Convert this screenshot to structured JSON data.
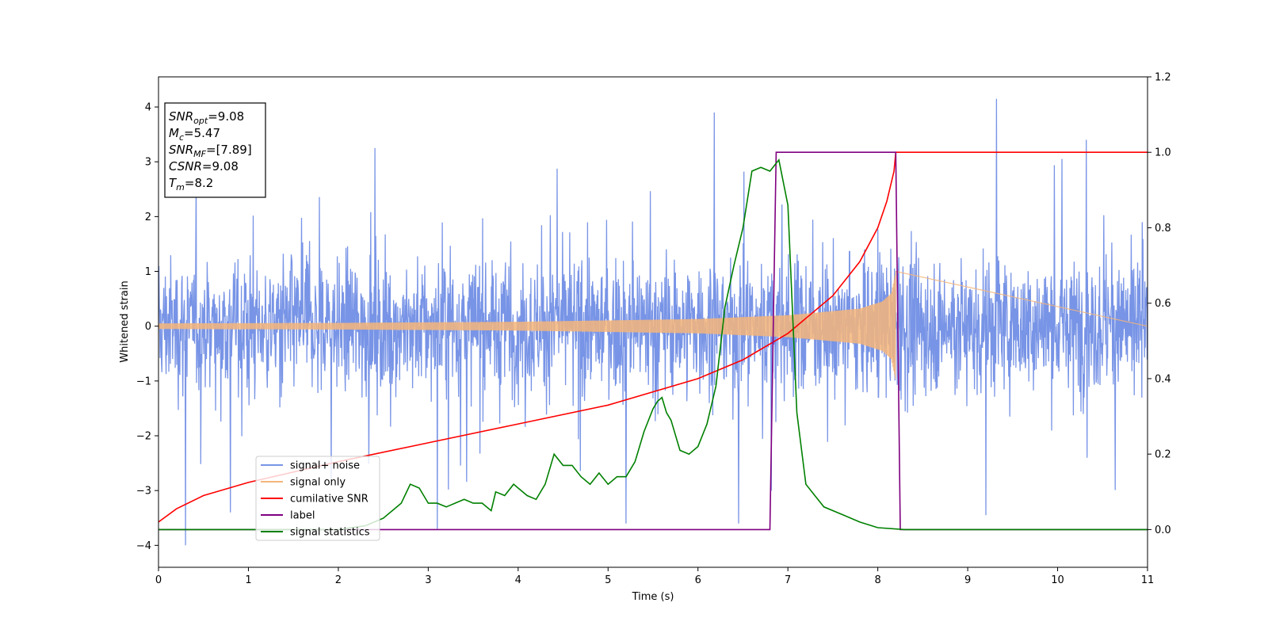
{
  "chart_data": {
    "type": "line",
    "xlabel": "Time (s)",
    "ylabel": "Whitened strain",
    "xlim": [
      0,
      11
    ],
    "ylim_left": [
      -4.4,
      4.55
    ],
    "ylim_right": [
      -0.1,
      1.2
    ],
    "x_ticks": [
      0,
      1,
      2,
      3,
      4,
      5,
      6,
      7,
      8,
      9,
      10,
      11
    ],
    "y_ticks_left": [
      -4,
      -3,
      -2,
      -1,
      0,
      1,
      2,
      3,
      4
    ],
    "y_ticks_right": [
      0.0,
      0.2,
      0.4,
      0.6,
      0.8,
      1.0,
      1.2
    ],
    "grid": false,
    "legend_position": "lower-left",
    "stats_box": [
      {
        "name": "SNR",
        "sub": "opt",
        "value": "=9.08"
      },
      {
        "name": "M",
        "sub": "c",
        "value": "=5.47"
      },
      {
        "name": "SNR",
        "sub": "MF",
        "value": "=[7.89]"
      },
      {
        "name": "CSNR",
        "sub": "",
        "value": "=9.08"
      },
      {
        "name": "T",
        "sub": "m",
        "value": "=8.2"
      }
    ],
    "series": [
      {
        "name": "signal+ noise",
        "axis": "left",
        "color": "#7894e6",
        "kind": "noise",
        "x_range": [
          0,
          11
        ],
        "band": [
          -2.6,
          3.2
        ],
        "spikes": [
          {
            "x": 0.3,
            "y": -4.0
          },
          {
            "x": 0.8,
            "y": -3.4
          },
          {
            "x": 3.1,
            "y": -3.7
          },
          {
            "x": 5.2,
            "y": -3.6
          },
          {
            "x": 6.18,
            "y": 3.9
          },
          {
            "x": 6.45,
            "y": -3.6
          },
          {
            "x": 9.2,
            "y": -3.45
          },
          {
            "x": 9.32,
            "y": 4.15
          },
          {
            "x": 10.32,
            "y": 3.4
          }
        ]
      },
      {
        "name": "signal only",
        "axis": "left",
        "color": "#f5b57a",
        "kind": "chirp",
        "x_range": [
          0,
          8.2
        ],
        "envelope": [
          [
            0,
            0.05
          ],
          [
            2,
            0.06
          ],
          [
            4,
            0.08
          ],
          [
            6,
            0.13
          ],
          [
            7,
            0.2
          ],
          [
            7.8,
            0.32
          ],
          [
            8.05,
            0.45
          ],
          [
            8.15,
            0.6
          ],
          [
            8.2,
            1.0
          ]
        ]
      },
      {
        "name": "cumilative SNR",
        "axis": "right",
        "color": "#ff0000",
        "x": [
          0,
          0.2,
          0.5,
          1,
          2,
          3,
          4,
          5,
          6,
          6.5,
          7,
          7.5,
          7.8,
          8.0,
          8.1,
          8.18,
          8.2,
          11
        ],
        "y": [
          0.02,
          0.055,
          0.09,
          0.125,
          0.18,
          0.23,
          0.28,
          0.33,
          0.4,
          0.45,
          0.52,
          0.62,
          0.71,
          0.8,
          0.87,
          0.95,
          1.0,
          1.0
        ]
      },
      {
        "name": "label",
        "axis": "right",
        "color": "#800080",
        "x": [
          0,
          6.8,
          6.87,
          8.2,
          8.25,
          11
        ],
        "y": [
          0,
          0,
          1,
          1,
          0,
          0
        ]
      },
      {
        "name": "signal statistics",
        "axis": "right",
        "color": "#008000",
        "x": [
          0,
          2.0,
          2.3,
          2.5,
          2.7,
          2.8,
          2.9,
          3.0,
          3.1,
          3.2,
          3.4,
          3.5,
          3.6,
          3.7,
          3.75,
          3.85,
          3.95,
          4.0,
          4.1,
          4.2,
          4.3,
          4.4,
          4.5,
          4.6,
          4.7,
          4.8,
          4.9,
          5.0,
          5.1,
          5.2,
          5.3,
          5.4,
          5.5,
          5.55,
          5.6,
          5.65,
          5.7,
          5.8,
          5.9,
          6.0,
          6.1,
          6.2,
          6.3,
          6.4,
          6.5,
          6.6,
          6.7,
          6.8,
          6.9,
          7.0,
          7.1,
          7.2,
          7.3,
          7.4,
          7.6,
          7.8,
          8.0,
          8.3,
          11
        ],
        "y": [
          0,
          0.0,
          0.01,
          0.03,
          0.07,
          0.12,
          0.11,
          0.07,
          0.07,
          0.06,
          0.08,
          0.07,
          0.07,
          0.05,
          0.1,
          0.09,
          0.12,
          0.11,
          0.09,
          0.08,
          0.12,
          0.2,
          0.17,
          0.17,
          0.14,
          0.12,
          0.15,
          0.12,
          0.14,
          0.14,
          0.18,
          0.26,
          0.32,
          0.34,
          0.35,
          0.31,
          0.29,
          0.21,
          0.2,
          0.22,
          0.28,
          0.38,
          0.59,
          0.7,
          0.8,
          0.95,
          0.96,
          0.95,
          0.98,
          0.86,
          0.31,
          0.12,
          0.09,
          0.06,
          0.04,
          0.02,
          0.005,
          0.0,
          0.0
        ]
      }
    ]
  }
}
